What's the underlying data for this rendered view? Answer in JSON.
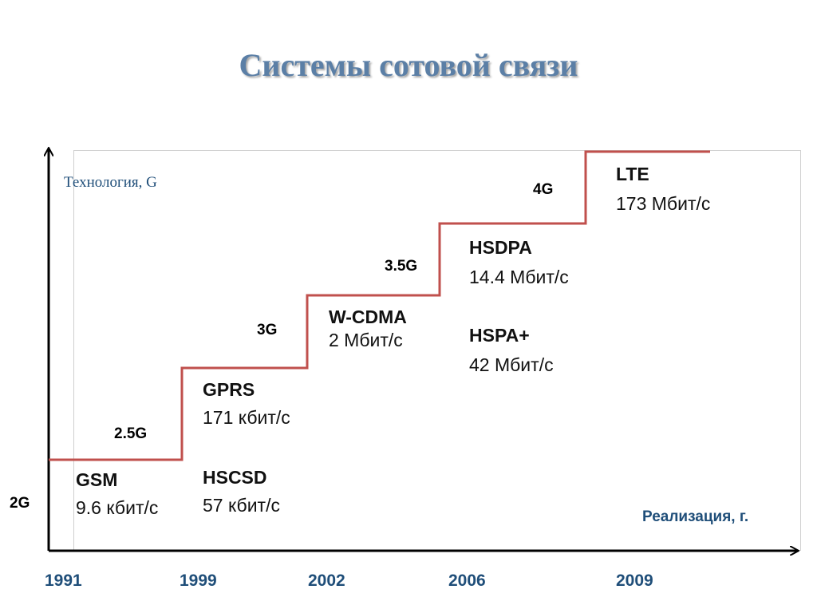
{
  "title": "Системы сотовой связи",
  "y_axis_label": "Технология, G",
  "x_axis_label": "Реализация, г.",
  "colors": {
    "title": "#5b7fa6",
    "step_line": "#c0504d",
    "axis": "#000000",
    "labels": "#1f4e79"
  },
  "generations": [
    "2G",
    "2.5G",
    "3G",
    "3.5G",
    "4G"
  ],
  "years": [
    "1991",
    "1999",
    "2002",
    "2006",
    "2009"
  ],
  "technologies": [
    {
      "name": "GSM",
      "speed": "9.6 кбит/с"
    },
    {
      "name": "GPRS",
      "speed": "171 кбит/с"
    },
    {
      "name": "HSCSD",
      "speed": "57 кбит/с"
    },
    {
      "name": "W-CDMA",
      "speed": "2 Мбит/с"
    },
    {
      "name": "HSDPA",
      "speed": "14.4 Мбит/с"
    },
    {
      "name": "HSPA+",
      "speed": "42 Мбит/с"
    },
    {
      "name": "LTE",
      "speed": "173 Мбит/с"
    }
  ]
}
